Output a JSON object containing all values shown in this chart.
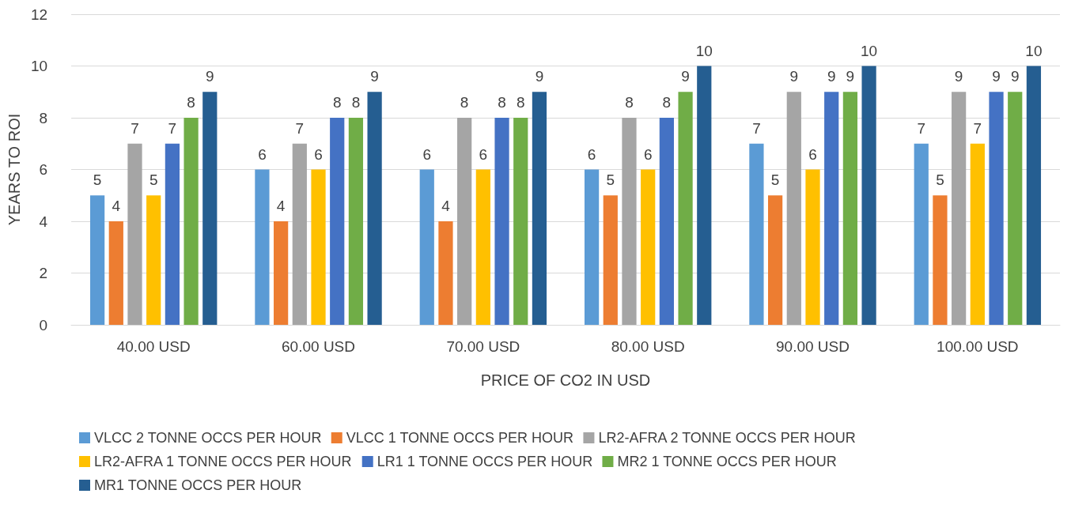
{
  "chart_data": {
    "type": "bar",
    "xlabel": "PRICE OF CO2 IN USD",
    "ylabel": "YEARS TO ROI",
    "categories": [
      "40.00 USD",
      "60.00 USD",
      "70.00 USD",
      "80.00 USD",
      "90.00 USD",
      "100.00 USD"
    ],
    "series": [
      {
        "name": "VLCC 2 TONNE OCCS PER HOUR",
        "color": "#5b9bd5",
        "values": [
          5,
          6,
          6,
          6,
          7,
          7
        ]
      },
      {
        "name": "VLCC 1 TONNE OCCS PER HOUR",
        "color": "#ed7d31",
        "values": [
          4,
          4,
          4,
          5,
          5,
          5
        ]
      },
      {
        "name": "LR2-AFRA 2 TONNE OCCS PER HOUR",
        "color": "#a5a5a5",
        "values": [
          7,
          7,
          8,
          8,
          9,
          9
        ]
      },
      {
        "name": "LR2-AFRA 1 TONNE OCCS PER HOUR",
        "color": "#ffc000",
        "values": [
          5,
          6,
          6,
          6,
          6,
          7
        ]
      },
      {
        "name": "LR1 1 TONNE OCCS PER HOUR",
        "color": "#4472c4",
        "values": [
          7,
          8,
          8,
          8,
          9,
          9
        ]
      },
      {
        "name": "MR2 1 TONNE OCCS PER HOUR",
        "color": "#70ad47",
        "values": [
          8,
          8,
          8,
          9,
          9,
          9
        ]
      },
      {
        "name": "MR1 TONNE OCCS PER HOUR",
        "color": "#255e91",
        "values": [
          9,
          9,
          9,
          10,
          10,
          10
        ]
      }
    ],
    "ylim": [
      0,
      12
    ],
    "yticks": [
      0,
      2,
      4,
      6,
      8,
      10,
      12
    ],
    "grid": "y",
    "legend": "bottom",
    "data_labels": true
  }
}
